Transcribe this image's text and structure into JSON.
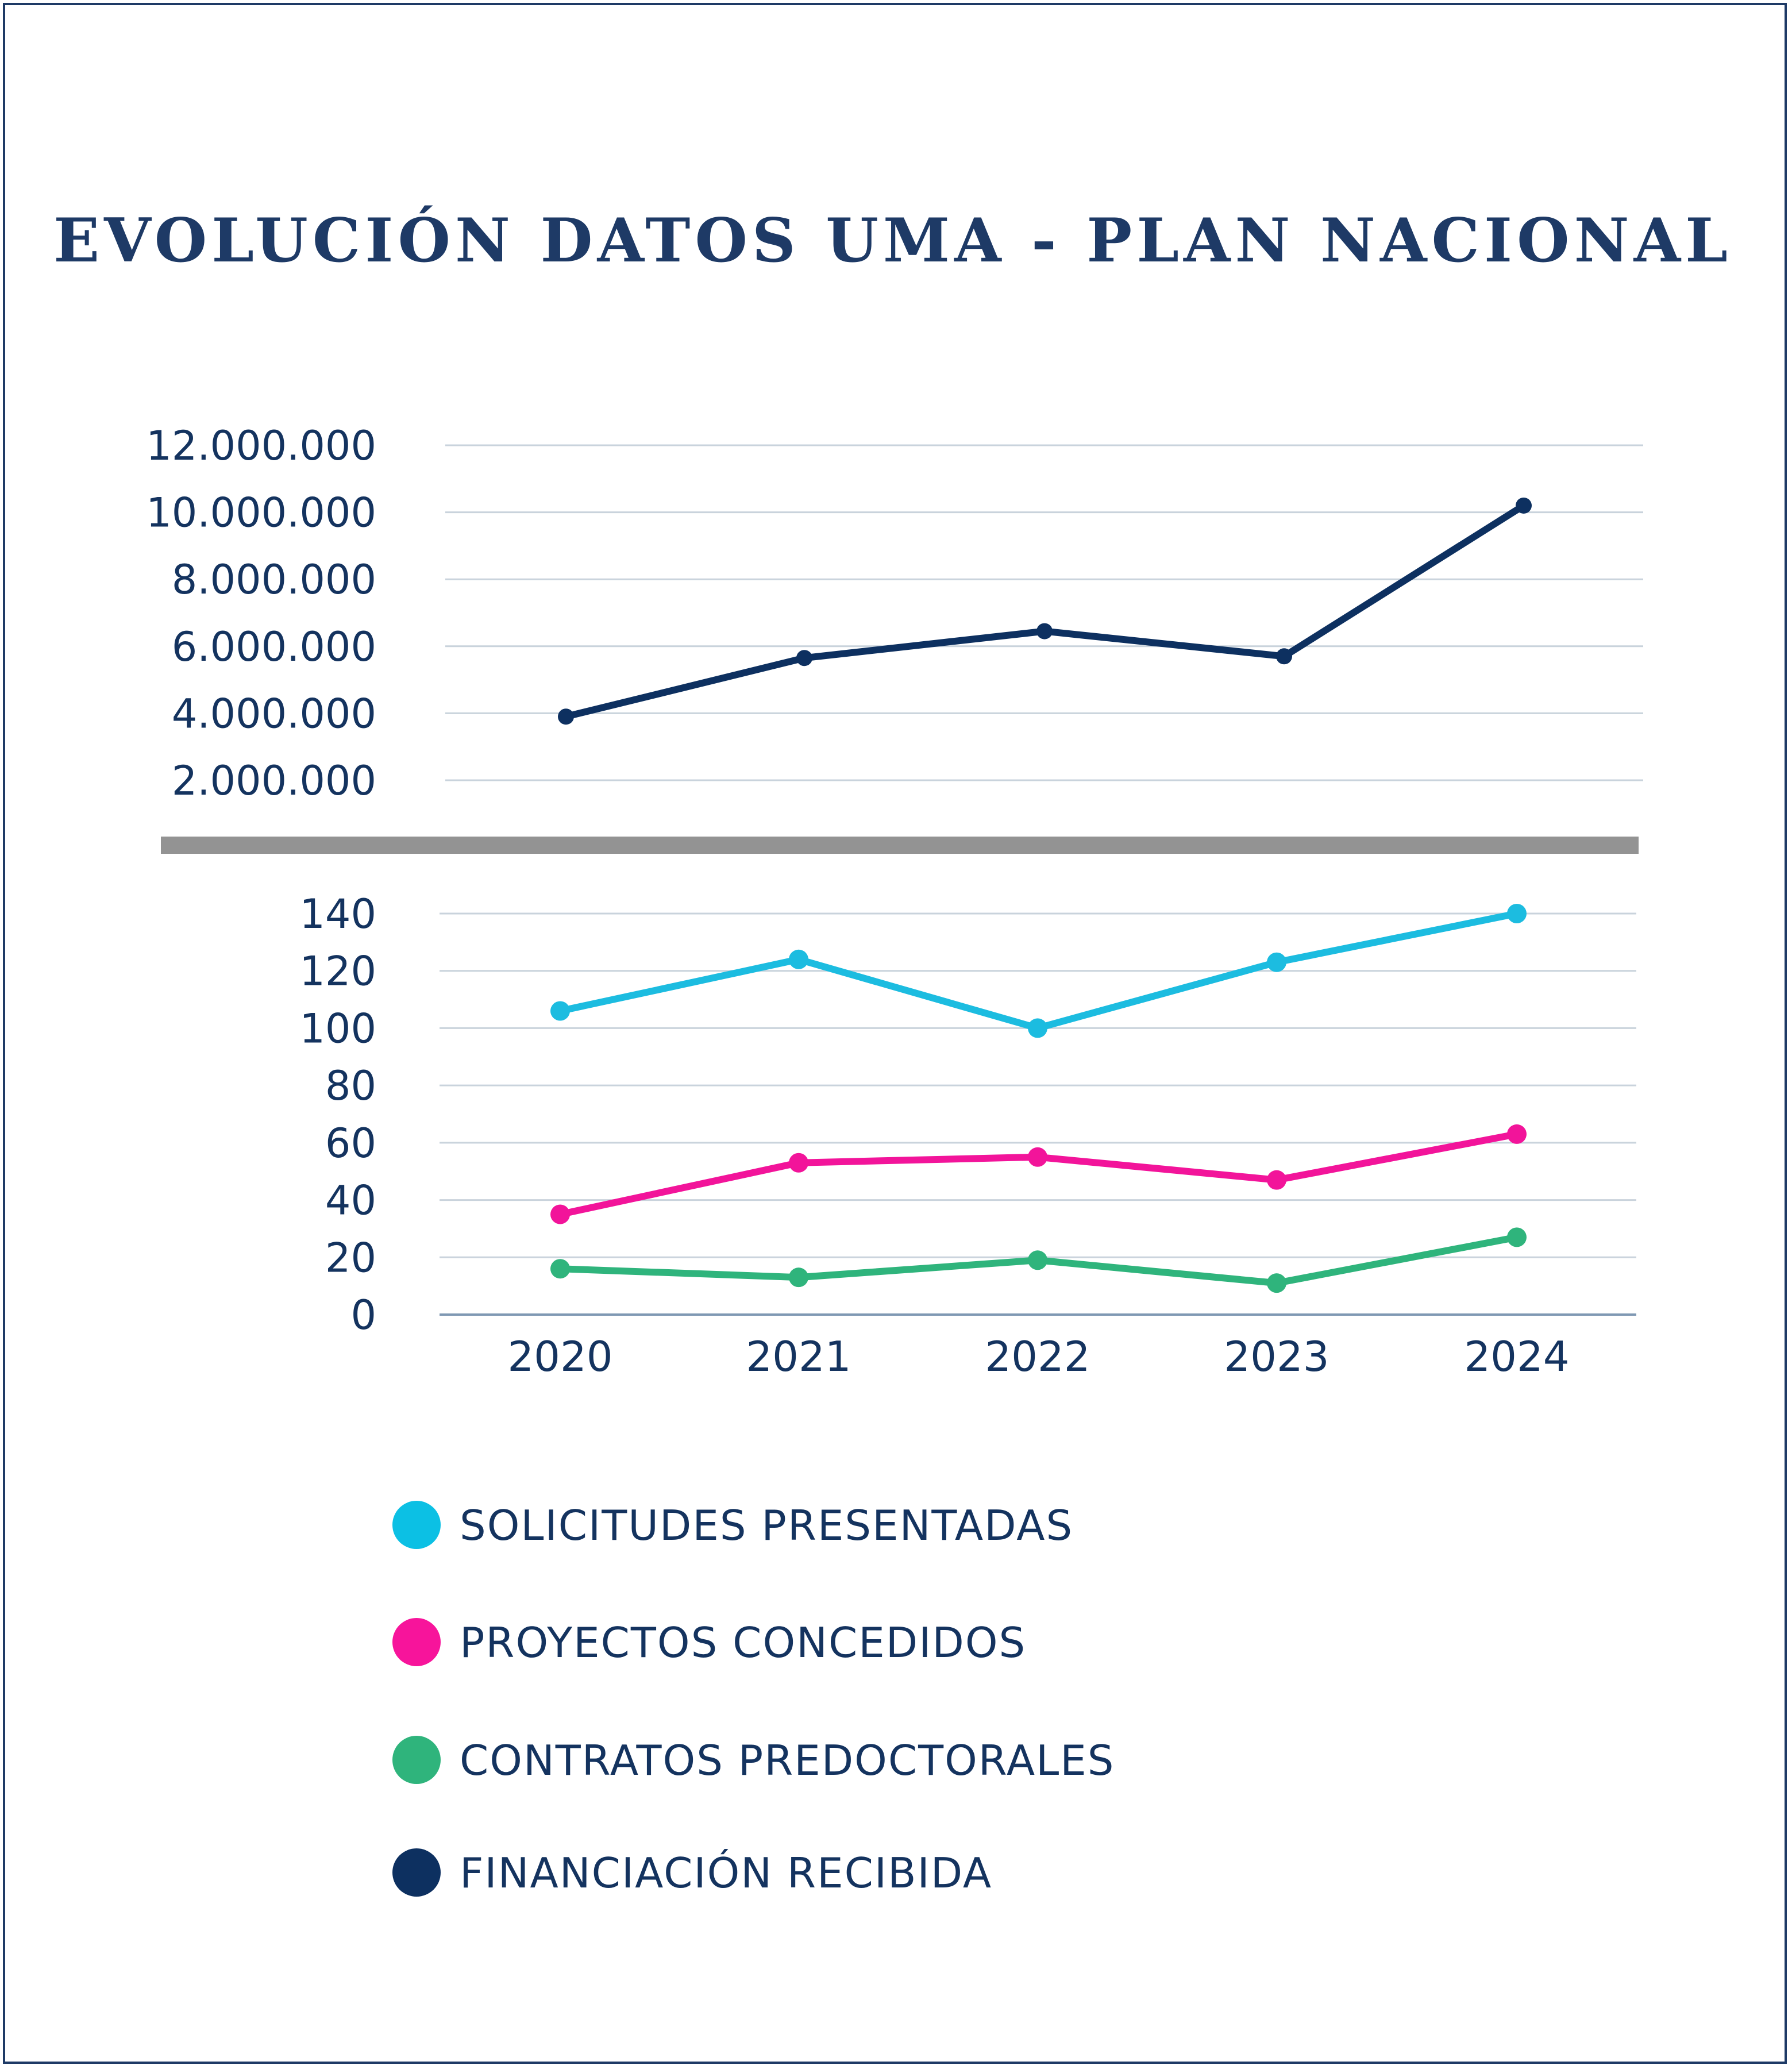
{
  "chart_data": [
    {
      "type": "line",
      "title": "EVOLUCIÓN DATOS UMA - PLAN NACIONAL",
      "categories": [
        "2020",
        "2021",
        "2022",
        "2023",
        "2024"
      ],
      "yticks": [
        "2.000.000",
        "4.000.000",
        "6.000.000",
        "8.000.000",
        "10.000.000",
        "12.000.000"
      ],
      "ytick_values": [
        2000000,
        4000000,
        6000000,
        8000000,
        10000000,
        12000000
      ],
      "ylim": [
        2000000,
        12000000
      ],
      "grid": true,
      "series": [
        {
          "name": "FINANCIACIÓN RECIBIDA",
          "color": "#0d3060",
          "values": [
            3900000,
            5650000,
            6450000,
            5700000,
            10200000
          ]
        }
      ]
    },
    {
      "type": "line",
      "categories": [
        "2020",
        "2021",
        "2022",
        "2023",
        "2024"
      ],
      "yticks": [
        "0",
        "20",
        "40",
        "60",
        "80",
        "100",
        "120",
        "140"
      ],
      "ytick_values": [
        0,
        20,
        40,
        60,
        80,
        100,
        120,
        140
      ],
      "ylim": [
        0,
        140
      ],
      "grid": true,
      "series": [
        {
          "name": "SOLICITUDES PRESENTADAS",
          "color": "#1cbce0",
          "values": [
            106,
            124,
            100,
            123,
            140
          ]
        },
        {
          "name": "PROYECTOS CONCEDIDOS",
          "color": "#f2149a",
          "values": [
            35,
            53,
            55,
            47,
            63
          ]
        },
        {
          "name": "CONTRATOS PREDOCTORALES",
          "color": "#2fb47c",
          "values": [
            16,
            13,
            19,
            11,
            27
          ]
        }
      ]
    }
  ],
  "legend": {
    "placement": "bottom-left",
    "items": [
      {
        "label": "SOLICITUDES PRESENTADAS",
        "color": "#0cc0e4"
      },
      {
        "label": "PROYECTOS CONCEDIDOS",
        "color": "#f7149b"
      },
      {
        "label": "CONTRATOS PREDOCTORALES",
        "color": "#2fb47c"
      },
      {
        "label": "FINANCIACIÓN RECIBIDA",
        "color": "#0d3060"
      }
    ]
  },
  "colors": {
    "frame": "#1e3a66",
    "separator": "#939393",
    "grid": "#c9d3dc",
    "text": "#14335f"
  }
}
